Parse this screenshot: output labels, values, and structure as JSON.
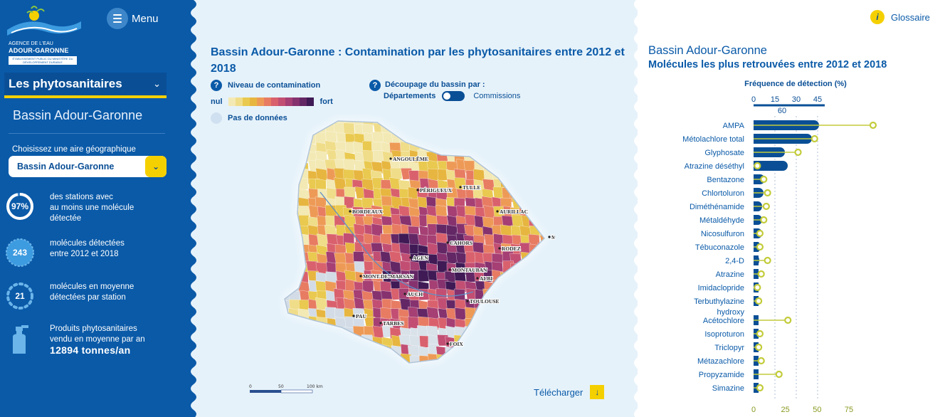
{
  "app": {
    "logo_line1": "AGENCE DE L'EAU",
    "logo_line2": "ADOUR-GARONNE",
    "logo_sub": "ÉTABLISSEMENT PUBLIC DU MINISTÈRE DU DÉVELOPPEMENT DURABLE",
    "menu_label": "Menu"
  },
  "sidebar": {
    "section": "Les phytosanitaires",
    "basin": "Bassin Adour-Garonne",
    "area_label": "Choisissez une aire géographique",
    "area_value": "Bassin Adour-Garonne",
    "stats": [
      {
        "value": "97%",
        "line1": "des stations avec",
        "line2": "au moins une molécule",
        "line3": "détectée"
      },
      {
        "value": "243",
        "line1": "molécules détectées",
        "line2": "entre 2012 et 2018"
      },
      {
        "value": "21",
        "line1": "molécules en moyenne",
        "line2": "détectées par station"
      },
      {
        "line1": "Produits phytosanitaires",
        "line2": "vendu en moyenne par an",
        "line3": "12894 tonnes/an"
      }
    ]
  },
  "map": {
    "title": "Bassin Adour-Garonne : Contamination par les phytosanitaires entre 2012 et 2018",
    "legend_title": "Niveau de contamination",
    "legend_low": "nul",
    "legend_high": "fort",
    "no_data": "Pas de données",
    "split_title": "Découpage du bassin par :",
    "split_departements": "Départements",
    "split_commissions": "Commissions",
    "scale_labels": [
      "0",
      "50",
      "100 km"
    ],
    "download": "Télécharger",
    "gradient_colors": [
      "#f3e9b4",
      "#f0dd8a",
      "#e9c94f",
      "#e7b640",
      "#ee9a57",
      "#e77c63",
      "#d9616d",
      "#c24f73",
      "#a53f74",
      "#86326f",
      "#632765",
      "#3f1a55"
    ],
    "cities": [
      {
        "name": "ANGOULÊME"
      },
      {
        "name": "PÉRIGUEUX"
      },
      {
        "name": "TULLE"
      },
      {
        "name": "BORDEAUX"
      },
      {
        "name": "AURILLAC"
      },
      {
        "name": "MENDE"
      },
      {
        "name": "CAHORS"
      },
      {
        "name": "RODEZ"
      },
      {
        "name": "AGEN"
      },
      {
        "name": "MONTAUBAN"
      },
      {
        "name": "ALBI"
      },
      {
        "name": "MONT-DE-MARSAN"
      },
      {
        "name": "AUCH"
      },
      {
        "name": "TOULOUSE"
      },
      {
        "name": "PAU"
      },
      {
        "name": "TARBES"
      },
      {
        "name": "FOIX"
      }
    ]
  },
  "chart_panel": {
    "glossary": "Glossaire",
    "title1": "Bassin Adour-Garonne",
    "title2": "Molécules les plus retrouvées entre 2012 et 2018"
  },
  "chart_data": {
    "type": "bar",
    "title": "Molécules les plus retrouvées entre 2012 et 2018",
    "xlabel": "Fréquence de détection (%)",
    "top_ticks": [
      "0",
      "15",
      "30",
      "45",
      "60"
    ],
    "bottom_ticks": [
      "0",
      "25",
      "50",
      "75"
    ],
    "top_scale_max": 45,
    "bottom_scale_max": 75,
    "categories": [
      "AMPA",
      "Métolachlore total",
      "Glyphosate",
      "Atrazine déséthyl",
      "Bentazone",
      "Chlortoluron",
      "Diméthénamide",
      "Métaldéhyde",
      "Nicosulfuron",
      "Tébuconazole",
      "2,4-D",
      "Atrazine",
      "Imidaclopride",
      "Terbuthylazine hydroxy",
      "Acétochlore",
      "Isoproturon",
      "Triclopyr",
      "Métazachlore",
      "Propyzamide",
      "Simazine"
    ],
    "series": [
      {
        "values": [
          46,
          41,
          22,
          24,
          8,
          7,
          6,
          6,
          6,
          5,
          4,
          3,
          3,
          3,
          3,
          3,
          3,
          3,
          3,
          3
        ]
      },
      {
        "values": [
          94,
          48,
          35,
          3,
          8,
          11,
          10,
          8,
          5,
          5,
          11,
          6,
          3,
          4,
          27,
          5,
          4,
          6,
          20,
          5
        ]
      }
    ],
    "colors": {
      "bars": "#0a4f96",
      "lollipop": "#c3cc3a"
    }
  }
}
